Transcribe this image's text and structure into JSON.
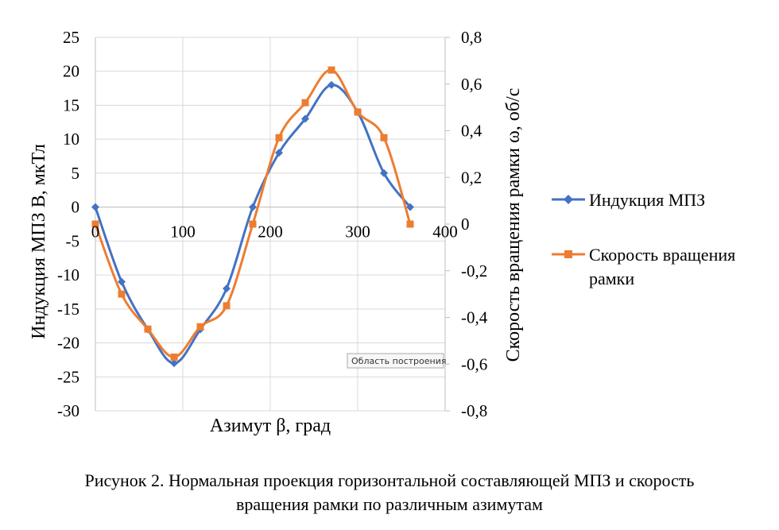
{
  "chart_data": {
    "type": "line",
    "xlabel": "Азимут β, град",
    "ylabel": "Индукция МПЗ B, мкТл",
    "y2label": "Скорость вращения рамки ω, об/с",
    "xlim": [
      0,
      400
    ],
    "ylim": [
      -30,
      25
    ],
    "y2lim": [
      -0.8,
      0.8
    ],
    "x_ticks": [
      "0",
      "100",
      "200",
      "300",
      "400"
    ],
    "y_ticks": [
      "25",
      "20",
      "15",
      "10",
      "5",
      "0",
      "-5",
      "-10",
      "-15",
      "-20",
      "-25",
      "-30"
    ],
    "y2_ticks": [
      "0,8",
      "0,6",
      "0,4",
      "0,2",
      "0",
      "-0,2",
      "-0,4",
      "-0,6",
      "-0,8"
    ],
    "grid": true,
    "legend_position": "right",
    "series": [
      {
        "name": "Индукция МПЗ",
        "axis": "left",
        "color": "#4472c4",
        "marker": "diamond",
        "x": [
          0,
          30,
          60,
          90,
          120,
          150,
          180,
          210,
          240,
          270,
          300,
          330,
          360
        ],
        "values": [
          0,
          -11,
          -18,
          -23,
          -18,
          -12,
          0,
          8,
          13,
          18,
          14,
          5,
          0
        ]
      },
      {
        "name": "Скорость вращения рамки",
        "axis": "right",
        "color": "#ed7d31",
        "marker": "square",
        "x": [
          0,
          30,
          60,
          90,
          120,
          150,
          180,
          210,
          240,
          270,
          300,
          330,
          360
        ],
        "values": [
          0,
          -0.3,
          -0.45,
          -0.57,
          -0.44,
          -0.35,
          0,
          0.37,
          0.52,
          0.66,
          0.48,
          0.37,
          0
        ]
      }
    ]
  },
  "legend": {
    "item1": "Индукция МПЗ",
    "item2_line1": "Скорость вращения",
    "item2_line2": "рамки"
  },
  "tooltip": "Область построения",
  "caption": {
    "line1": "Рисунок 2. Нормальная проекция горизонтальной составляющей МПЗ и скорость",
    "line2": "вращения рамки по различным азимутам"
  }
}
